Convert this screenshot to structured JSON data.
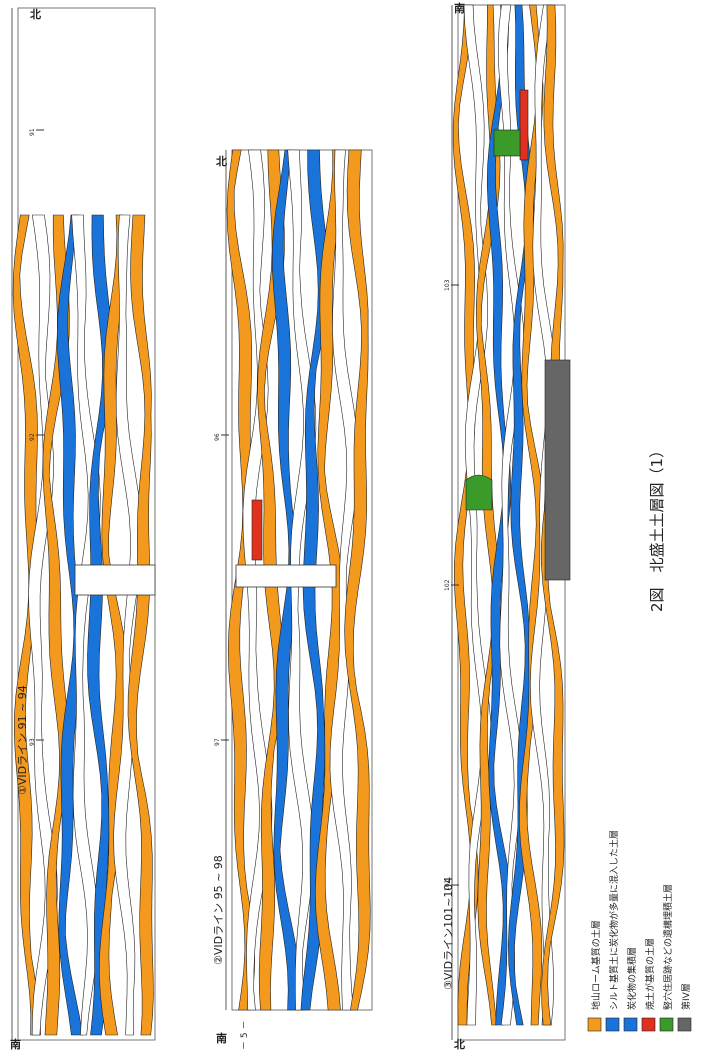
{
  "header": {
    "title": "2図　北盛土土層図（1）",
    "page": "－ 5 －"
  },
  "sections": [
    {
      "label": "①VIDライン 91 ~ 94",
      "south": "南",
      "north": "北",
      "stations": [
        "91",
        "92",
        "93"
      ]
    },
    {
      "label": "②VIDライン 95 ~ 98",
      "south": "南",
      "north": "北",
      "stations": [
        "96",
        "97"
      ]
    },
    {
      "label": "③VIDライン101~104",
      "south": "北",
      "north": "南",
      "stations": [
        "103",
        "102",
        "101"
      ]
    }
  ],
  "legend": [
    {
      "label": "地山ローム基質の土層",
      "color": "#f39a1e"
    },
    {
      "label": "シルト基質土に炭化物が多量に混入した土層",
      "color": "#1a73d9"
    },
    {
      "label": "炭化物の集積層",
      "color": "#1a73d9"
    },
    {
      "label": "焼土が基質の土層",
      "color": "#e0301e"
    },
    {
      "label": "竪穴住居跡などの遺構埋積土層",
      "color": "#3a9a2a"
    },
    {
      "label": "第IV層",
      "color": "#666666"
    }
  ]
}
